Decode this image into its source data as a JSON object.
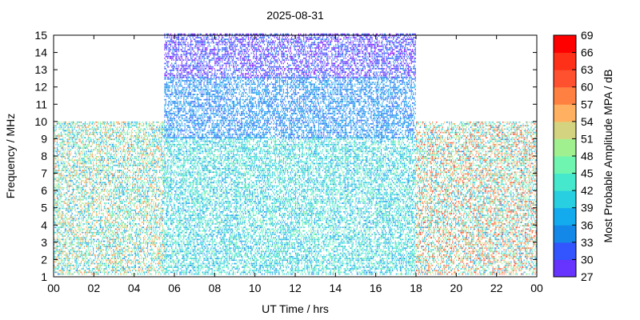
{
  "chart_data": {
    "type": "heatmap",
    "title": "2025-08-31",
    "xlabel": "UT Time / hrs",
    "ylabel": "Frequency / MHz",
    "xlim": [
      0,
      24
    ],
    "ylim": [
      1,
      15
    ],
    "x_ticks": [
      "00",
      "02",
      "04",
      "06",
      "08",
      "10",
      "12",
      "14",
      "16",
      "18",
      "20",
      "22",
      "00"
    ],
    "y_ticks": [
      "1",
      "2",
      "3",
      "4",
      "5",
      "6",
      "7",
      "8",
      "9",
      "10",
      "11",
      "12",
      "13",
      "14",
      "15"
    ],
    "colorbar": {
      "label": "Most Probable Amplitude MPA / dB",
      "bins": [
        {
          "value": 27,
          "color": "#8000ff"
        },
        {
          "value": 30,
          "color": "#6633ff"
        },
        {
          "value": 33,
          "color": "#3355ff"
        },
        {
          "value": 36,
          "color": "#1488e8"
        },
        {
          "value": 39,
          "color": "#14aaee"
        },
        {
          "value": 42,
          "color": "#28cfe0"
        },
        {
          "value": 45,
          "color": "#45e8cc"
        },
        {
          "value": 48,
          "color": "#70f5b0"
        },
        {
          "value": 51,
          "color": "#a0f090"
        },
        {
          "value": 54,
          "color": "#d4d480"
        },
        {
          "value": 57,
          "color": "#ffb060"
        },
        {
          "value": 60,
          "color": "#ff8040"
        },
        {
          "value": 63,
          "color": "#ff5030"
        },
        {
          "value": 66,
          "color": "#ff3018"
        },
        {
          "value": 69,
          "color": "#ff0000"
        }
      ]
    },
    "regions": [
      {
        "t": [
          0,
          5.5
        ],
        "f": [
          1.1,
          9.9
        ],
        "mpa": [
          36,
          60
        ]
      },
      {
        "t": [
          5.5,
          18
        ],
        "f": [
          1.1,
          9
        ],
        "mpa": [
          36,
          50
        ]
      },
      {
        "t": [
          5.5,
          18
        ],
        "f": [
          9,
          12.5
        ],
        "mpa": [
          33,
          40
        ]
      },
      {
        "t": [
          5.5,
          18
        ],
        "f": [
          12.5,
          15
        ],
        "mpa": [
          27,
          36
        ]
      },
      {
        "t": [
          18,
          24
        ],
        "f": [
          1.1,
          9.9
        ],
        "mpa": [
          36,
          66
        ]
      }
    ]
  }
}
